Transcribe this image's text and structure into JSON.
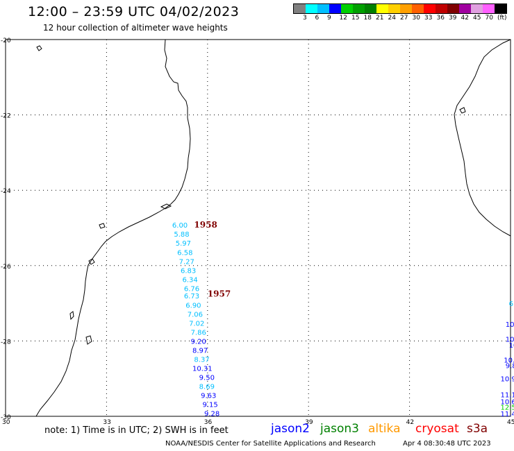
{
  "header": {
    "title": "12:00 – 23:59 UTC 04/02/2023",
    "subtitle": "12 hour collection of altimeter wave heights"
  },
  "legend": {
    "colors": [
      "#808080",
      "#00ffff",
      "#00bfff",
      "#0000ff",
      "#00d000",
      "#00a000",
      "#008000",
      "#ffff00",
      "#ffd000",
      "#ffa000",
      "#ff6000",
      "#ff0000",
      "#c00000",
      "#800000",
      "#a000a0",
      "#e0a0e0",
      "#ff60ff",
      "#000000"
    ],
    "labels": [
      "3",
      "6",
      "9",
      "12",
      "15",
      "18",
      "21",
      "24",
      "27",
      "30",
      "33",
      "36",
      "39",
      "42",
      "45",
      "70",
      "(ft)"
    ]
  },
  "axes": {
    "lat_labels": [
      "-20",
      "-22",
      "-24",
      "-26",
      "-28",
      "-30"
    ],
    "lon_labels": [
      "30",
      "33",
      "36",
      "39",
      "42",
      "45"
    ]
  },
  "observations": {
    "track_labels": [
      {
        "text": "1958",
        "lon": 35.6,
        "lat": -24.92,
        "color": "#800000"
      },
      {
        "text": "1957",
        "lon": 36.0,
        "lat": -26.75,
        "color": "#800000"
      }
    ],
    "points": [
      {
        "text": "6.00",
        "lon": 34.95,
        "lat": -24.92,
        "color": "#00bfff"
      },
      {
        "text": "5.88",
        "lon": 35.0,
        "lat": -25.16,
        "color": "#00bfff"
      },
      {
        "text": "5.97",
        "lon": 35.05,
        "lat": -25.4,
        "color": "#00bfff"
      },
      {
        "text": "6.58",
        "lon": 35.1,
        "lat": -25.64,
        "color": "#00bfff"
      },
      {
        "text": "7.27",
        "lon": 35.15,
        "lat": -25.88,
        "color": "#00bfff"
      },
      {
        "text": "6.83",
        "lon": 35.2,
        "lat": -26.12,
        "color": "#00bfff"
      },
      {
        "text": "6.34",
        "lon": 35.25,
        "lat": -26.36,
        "color": "#00bfff"
      },
      {
        "text": "6.76",
        "lon": 35.3,
        "lat": -26.6,
        "color": "#00bfff"
      },
      {
        "text": "6.73",
        "lon": 35.3,
        "lat": -26.8,
        "color": "#00bfff"
      },
      {
        "text": "6.90",
        "lon": 35.35,
        "lat": -27.04,
        "color": "#00bfff"
      },
      {
        "text": "7.06",
        "lon": 35.4,
        "lat": -27.28,
        "color": "#00bfff"
      },
      {
        "text": "7.02",
        "lon": 35.45,
        "lat": -27.52,
        "color": "#00bfff"
      },
      {
        "text": "7.86",
        "lon": 35.5,
        "lat": -27.76,
        "color": "#00bfff"
      },
      {
        "text": "9.20",
        "lon": 35.5,
        "lat": -28.0,
        "color": "#0000ff"
      },
      {
        "text": "8.97",
        "lon": 35.55,
        "lat": -28.24,
        "color": "#0000ff"
      },
      {
        "text": "8.37",
        "lon": 35.6,
        "lat": -28.48,
        "color": "#00bfff"
      },
      {
        "text": "10.31",
        "lon": 35.55,
        "lat": -28.72,
        "color": "#0000ff"
      },
      {
        "text": "9.50",
        "lon": 35.75,
        "lat": -28.96,
        "color": "#0000ff"
      },
      {
        "text": "8.69",
        "lon": 35.75,
        "lat": -29.2,
        "color": "#00bfff"
      },
      {
        "text": "9.63",
        "lon": 35.8,
        "lat": -29.44,
        "color": "#0000ff"
      },
      {
        "text": "9.15",
        "lon": 35.85,
        "lat": -29.68,
        "color": "#0000ff"
      },
      {
        "text": "9.28",
        "lon": 35.9,
        "lat": -29.92,
        "color": "#0000ff"
      },
      {
        "text": "6",
        "lon": 44.95,
        "lat": -27.0,
        "color": "#00bfff"
      },
      {
        "text": "10",
        "lon": 44.85,
        "lat": -27.55,
        "color": "#0000ff"
      },
      {
        "text": "10",
        "lon": 44.85,
        "lat": -27.95,
        "color": "#0000ff"
      },
      {
        "text": "10",
        "lon": 44.95,
        "lat": -28.1,
        "color": "#0000ff"
      },
      {
        "text": "10.",
        "lon": 44.8,
        "lat": -28.5,
        "color": "#0000ff"
      },
      {
        "text": "9.8",
        "lon": 44.85,
        "lat": -28.65,
        "color": "#0000ff"
      },
      {
        "text": "10.9",
        "lon": 44.7,
        "lat": -29.0,
        "color": "#0000ff"
      },
      {
        "text": "11.1",
        "lon": 44.7,
        "lat": -29.42,
        "color": "#0000ff"
      },
      {
        "text": "10.6",
        "lon": 44.7,
        "lat": -29.6,
        "color": "#0000ff"
      },
      {
        "text": "12.5",
        "lon": 44.7,
        "lat": -29.75,
        "color": "#00d000"
      },
      {
        "text": "11.4",
        "lon": 44.7,
        "lat": -29.93,
        "color": "#0000ff"
      }
    ]
  },
  "footer": {
    "note": "note:  1) Time is in UTC;  2) SWH is in feet",
    "satellites": [
      {
        "name": "jason2",
        "color": "#0000ff"
      },
      {
        "name": "jason3",
        "color": "#008000"
      },
      {
        "name": "altika",
        "color": "#ff9900"
      },
      {
        "name": "cryosat",
        "color": "#ff0000"
      },
      {
        "name": "s3a",
        "color": "#800000"
      }
    ],
    "credit": "NOAA/NESDIS Center for Satellite Applications and Research",
    "timestamp": "Apr  4 08:30:48 UTC 2023"
  }
}
